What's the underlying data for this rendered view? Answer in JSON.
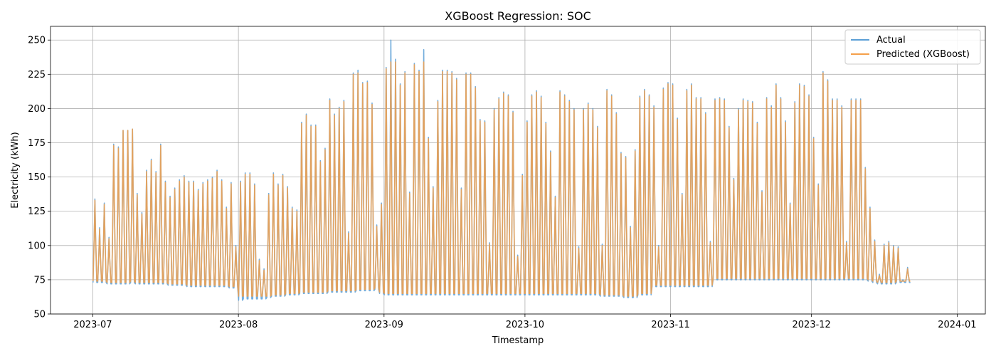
{
  "chart_data": {
    "type": "line",
    "title": "XGBoost Regression: SOC",
    "xlabel": "Timestamp",
    "ylabel": "Electricity (kWh)",
    "xlim": [
      "2023-06-22",
      "2024-01-07"
    ],
    "ylim": [
      50,
      260
    ],
    "x_ticks": [
      {
        "date": "2023-07-01",
        "label": "2023-07"
      },
      {
        "date": "2023-08-01",
        "label": "2023-08"
      },
      {
        "date": "2023-09-01",
        "label": "2023-09"
      },
      {
        "date": "2023-10-01",
        "label": "2023-10"
      },
      {
        "date": "2023-11-01",
        "label": "2023-11"
      },
      {
        "date": "2023-12-01",
        "label": "2023-12"
      },
      {
        "date": "2024-01-01",
        "label": "2024-01"
      }
    ],
    "y_ticks": [
      50,
      75,
      100,
      125,
      150,
      175,
      200,
      225,
      250
    ],
    "grid": true,
    "legend_position": "top-right",
    "series": [
      {
        "name": "Actual",
        "color": "#5b9fd6",
        "x": [
          "2023-07-01",
          "2023-07-02",
          "2023-07-03",
          "2023-07-04",
          "2023-07-05",
          "2023-07-06",
          "2023-07-07",
          "2023-07-08",
          "2023-07-09",
          "2023-07-10",
          "2023-07-11",
          "2023-07-12",
          "2023-07-13",
          "2023-07-14",
          "2023-07-15",
          "2023-07-16",
          "2023-07-17",
          "2023-07-18",
          "2023-07-19",
          "2023-07-20",
          "2023-07-21",
          "2023-07-22",
          "2023-07-23",
          "2023-07-24",
          "2023-07-25",
          "2023-07-26",
          "2023-07-27",
          "2023-07-28",
          "2023-07-29",
          "2023-07-30",
          "2023-07-31",
          "2023-08-01",
          "2023-08-02",
          "2023-08-03",
          "2023-08-04",
          "2023-08-05",
          "2023-08-06",
          "2023-08-07",
          "2023-08-08",
          "2023-08-09",
          "2023-08-10",
          "2023-08-11",
          "2023-08-12",
          "2023-08-13",
          "2023-08-14",
          "2023-08-15",
          "2023-08-16",
          "2023-08-17",
          "2023-08-18",
          "2023-08-19",
          "2023-08-20",
          "2023-08-21",
          "2023-08-22",
          "2023-08-23",
          "2023-08-24",
          "2023-08-25",
          "2023-08-26",
          "2023-08-27",
          "2023-08-28",
          "2023-08-29",
          "2023-08-30",
          "2023-08-31",
          "2023-09-01",
          "2023-09-02",
          "2023-09-03",
          "2023-09-04",
          "2023-09-05",
          "2023-09-06",
          "2023-09-07",
          "2023-09-08",
          "2023-09-09",
          "2023-09-10",
          "2023-09-11",
          "2023-09-12",
          "2023-09-13",
          "2023-09-14",
          "2023-09-15",
          "2023-09-16",
          "2023-09-17",
          "2023-09-18",
          "2023-09-19",
          "2023-09-20",
          "2023-09-21",
          "2023-09-22",
          "2023-09-23",
          "2023-09-24",
          "2023-09-25",
          "2023-09-26",
          "2023-09-27",
          "2023-09-28",
          "2023-09-29",
          "2023-09-30",
          "2023-10-01",
          "2023-10-02",
          "2023-10-03",
          "2023-10-04",
          "2023-10-05",
          "2023-10-06",
          "2023-10-07",
          "2023-10-08",
          "2023-10-09",
          "2023-10-10",
          "2023-10-11",
          "2023-10-12",
          "2023-10-13",
          "2023-10-14",
          "2023-10-15",
          "2023-10-16",
          "2023-10-17",
          "2023-10-18",
          "2023-10-19",
          "2023-10-20",
          "2023-10-21",
          "2023-10-22",
          "2023-10-23",
          "2023-10-24",
          "2023-10-25",
          "2023-10-26",
          "2023-10-27",
          "2023-10-28",
          "2023-10-29",
          "2023-10-30",
          "2023-10-31",
          "2023-11-01",
          "2023-11-02",
          "2023-11-03",
          "2023-11-04",
          "2023-11-05",
          "2023-11-06",
          "2023-11-07",
          "2023-11-08",
          "2023-11-09",
          "2023-11-10",
          "2023-11-11",
          "2023-11-12",
          "2023-11-13",
          "2023-11-14",
          "2023-11-15",
          "2023-11-16",
          "2023-11-17",
          "2023-11-18",
          "2023-11-19",
          "2023-11-20",
          "2023-11-21",
          "2023-11-22",
          "2023-11-23",
          "2023-11-24",
          "2023-11-25",
          "2023-11-26",
          "2023-11-27",
          "2023-11-28",
          "2023-11-29",
          "2023-11-30",
          "2023-12-01",
          "2023-12-02",
          "2023-12-03",
          "2023-12-04",
          "2023-12-05",
          "2023-12-06",
          "2023-12-07",
          "2023-12-08",
          "2023-12-09",
          "2023-12-10",
          "2023-12-11",
          "2023-12-12",
          "2023-12-13",
          "2023-12-14",
          "2023-12-15",
          "2023-12-16",
          "2023-12-17",
          "2023-12-18",
          "2023-12-19",
          "2023-12-20",
          "2023-12-21",
          "2023-12-22",
          "2023-12-23",
          "2023-12-24",
          "2023-12-25",
          "2023-12-26",
          "2023-12-27",
          "2023-12-28",
          "2023-12-29",
          "2023-12-30",
          "2023-12-31"
        ],
        "peak": [
          134,
          113,
          131,
          106,
          174,
          172,
          184,
          184,
          185,
          138,
          124,
          155,
          163,
          154,
          174,
          147,
          136,
          142,
          148,
          151,
          147,
          147,
          141,
          146,
          148,
          150,
          155,
          148,
          128,
          146,
          100,
          147,
          153,
          153,
          145,
          90,
          83,
          138,
          153,
          145,
          152,
          143,
          128,
          126,
          190,
          196,
          188,
          188,
          162,
          171,
          207,
          196,
          201,
          206,
          110,
          226,
          228,
          219,
          220,
          204,
          115,
          131,
          230,
          250,
          236,
          218,
          227,
          139,
          233,
          228,
          243,
          179,
          143,
          206,
          228,
          228,
          227,
          222,
          142,
          226,
          226,
          216,
          192,
          191,
          102,
          200,
          208,
          212,
          210,
          198,
          93,
          152,
          191,
          210,
          213,
          209,
          190,
          169,
          136,
          213,
          210,
          206,
          200,
          99,
          200,
          204,
          200,
          187,
          101,
          214,
          210,
          197,
          168,
          165,
          114,
          170,
          209,
          214,
          210,
          202,
          100,
          215,
          219,
          218,
          193,
          138,
          214,
          218,
          208,
          208,
          197,
          103,
          207,
          208,
          207,
          187,
          149,
          200,
          207,
          206,
          205,
          190,
          140,
          208,
          202,
          218,
          208,
          191,
          131,
          205,
          218,
          217,
          210,
          179,
          145,
          227,
          221,
          207,
          207,
          202,
          103,
          207,
          207,
          207,
          157,
          128,
          104,
          79,
          101,
          103,
          100,
          99,
          75,
          84
        ],
        "base": [
          73,
          73,
          73,
          72,
          72,
          72,
          72,
          72,
          73,
          72,
          72,
          72,
          72,
          72,
          72,
          72,
          71,
          71,
          71,
          71,
          70,
          70,
          70,
          70,
          70,
          70,
          70,
          70,
          70,
          69,
          69,
          60,
          61,
          61,
          61,
          61,
          61,
          62,
          63,
          63,
          63,
          64,
          64,
          64,
          65,
          65,
          65,
          65,
          65,
          65,
          66,
          66,
          66,
          66,
          66,
          66,
          67,
          67,
          67,
          67,
          68,
          65,
          64,
          64,
          64,
          64,
          64,
          64,
          64,
          64,
          64,
          64,
          64,
          64,
          64,
          64,
          64,
          64,
          64,
          64,
          64,
          64,
          64,
          64,
          64,
          64,
          64,
          64,
          64,
          64,
          64,
          64,
          64,
          64,
          64,
          64,
          64,
          64,
          64,
          64,
          64,
          64,
          64,
          64,
          64,
          64,
          64,
          64,
          63,
          63,
          63,
          63,
          63,
          62,
          62,
          62,
          64,
          64,
          64,
          70,
          70,
          70,
          70,
          70,
          70,
          70,
          70,
          70,
          70,
          70,
          70,
          70,
          75,
          75,
          75,
          75,
          75,
          75,
          75,
          75,
          75,
          75,
          75,
          75,
          75,
          75,
          75,
          75,
          75,
          75,
          75,
          75,
          75,
          75,
          75,
          75,
          75,
          75,
          75,
          75,
          75,
          75,
          75,
          75,
          75,
          74,
          73,
          72,
          72,
          72,
          72,
          73,
          73,
          73,
          73,
          73,
          73,
          73,
          73,
          73,
          73,
          73,
          73,
          73,
          73,
          73,
          73,
          73,
          73,
          73,
          73,
          73,
          73
        ]
      },
      {
        "name": "Predicted (XGBoost)",
        "color": "#f5a04a",
        "x": "same as Actual",
        "peak": [
          133,
          112,
          130,
          105,
          173,
          171,
          184,
          184,
          185,
          137,
          123,
          154,
          162,
          153,
          173,
          146,
          135,
          141,
          147,
          150,
          146,
          146,
          140,
          145,
          147,
          149,
          154,
          147,
          127,
          145,
          99,
          146,
          152,
          152,
          144,
          89,
          82,
          137,
          152,
          144,
          151,
          142,
          127,
          125,
          189,
          195,
          187,
          187,
          161,
          170,
          206,
          195,
          200,
          205,
          109,
          225,
          226,
          218,
          219,
          203,
          114,
          130,
          229,
          234,
          234,
          217,
          226,
          138,
          232,
          227,
          234,
          178,
          142,
          205,
          227,
          227,
          226,
          221,
          141,
          225,
          225,
          215,
          191,
          190,
          101,
          199,
          207,
          211,
          209,
          197,
          92,
          151,
          190,
          209,
          212,
          208,
          189,
          168,
          135,
          212,
          209,
          205,
          199,
          98,
          199,
          203,
          199,
          186,
          100,
          213,
          209,
          196,
          167,
          164,
          113,
          169,
          208,
          213,
          209,
          201,
          99,
          214,
          218,
          217,
          192,
          137,
          213,
          217,
          207,
          207,
          196,
          102,
          206,
          207,
          206,
          186,
          148,
          199,
          206,
          205,
          204,
          189,
          139,
          207,
          201,
          217,
          207,
          190,
          130,
          204,
          217,
          216,
          209,
          178,
          144,
          226,
          220,
          206,
          206,
          201,
          102,
          206,
          206,
          206,
          156,
          127,
          103,
          78,
          100,
          102,
          99,
          98,
          74,
          83
        ],
        "base": [
          74,
          74,
          74,
          73,
          73,
          73,
          73,
          73,
          74,
          73,
          73,
          73,
          73,
          73,
          73,
          73,
          72,
          72,
          72,
          72,
          71,
          71,
          71,
          71,
          71,
          71,
          71,
          71,
          71,
          70,
          70,
          63,
          63,
          63,
          63,
          63,
          63,
          63,
          64,
          64,
          64,
          65,
          65,
          65,
          66,
          66,
          66,
          66,
          66,
          66,
          67,
          67,
          67,
          67,
          67,
          67,
          68,
          68,
          68,
          68,
          69,
          66,
          65,
          65,
          65,
          65,
          65,
          65,
          65,
          65,
          65,
          65,
          65,
          65,
          65,
          65,
          65,
          65,
          65,
          65,
          65,
          65,
          65,
          65,
          65,
          65,
          65,
          65,
          65,
          65,
          65,
          65,
          65,
          65,
          65,
          65,
          65,
          65,
          65,
          65,
          65,
          65,
          65,
          65,
          65,
          65,
          65,
          65,
          64,
          64,
          64,
          64,
          64,
          63,
          63,
          63,
          65,
          65,
          65,
          71,
          71,
          71,
          71,
          71,
          71,
          71,
          71,
          71,
          71,
          71,
          71,
          71,
          76,
          76,
          76,
          76,
          76,
          76,
          76,
          76,
          76,
          76,
          76,
          76,
          76,
          76,
          76,
          76,
          76,
          76,
          76,
          76,
          76,
          76,
          76,
          76,
          76,
          76,
          76,
          76,
          76,
          76,
          76,
          76,
          76,
          75,
          74,
          73,
          73,
          73,
          73,
          74,
          74,
          74,
          74,
          74,
          74,
          74,
          74,
          74,
          74,
          74,
          74,
          74,
          74,
          74,
          74,
          74,
          74,
          74,
          74,
          74,
          74
        ]
      }
    ]
  }
}
